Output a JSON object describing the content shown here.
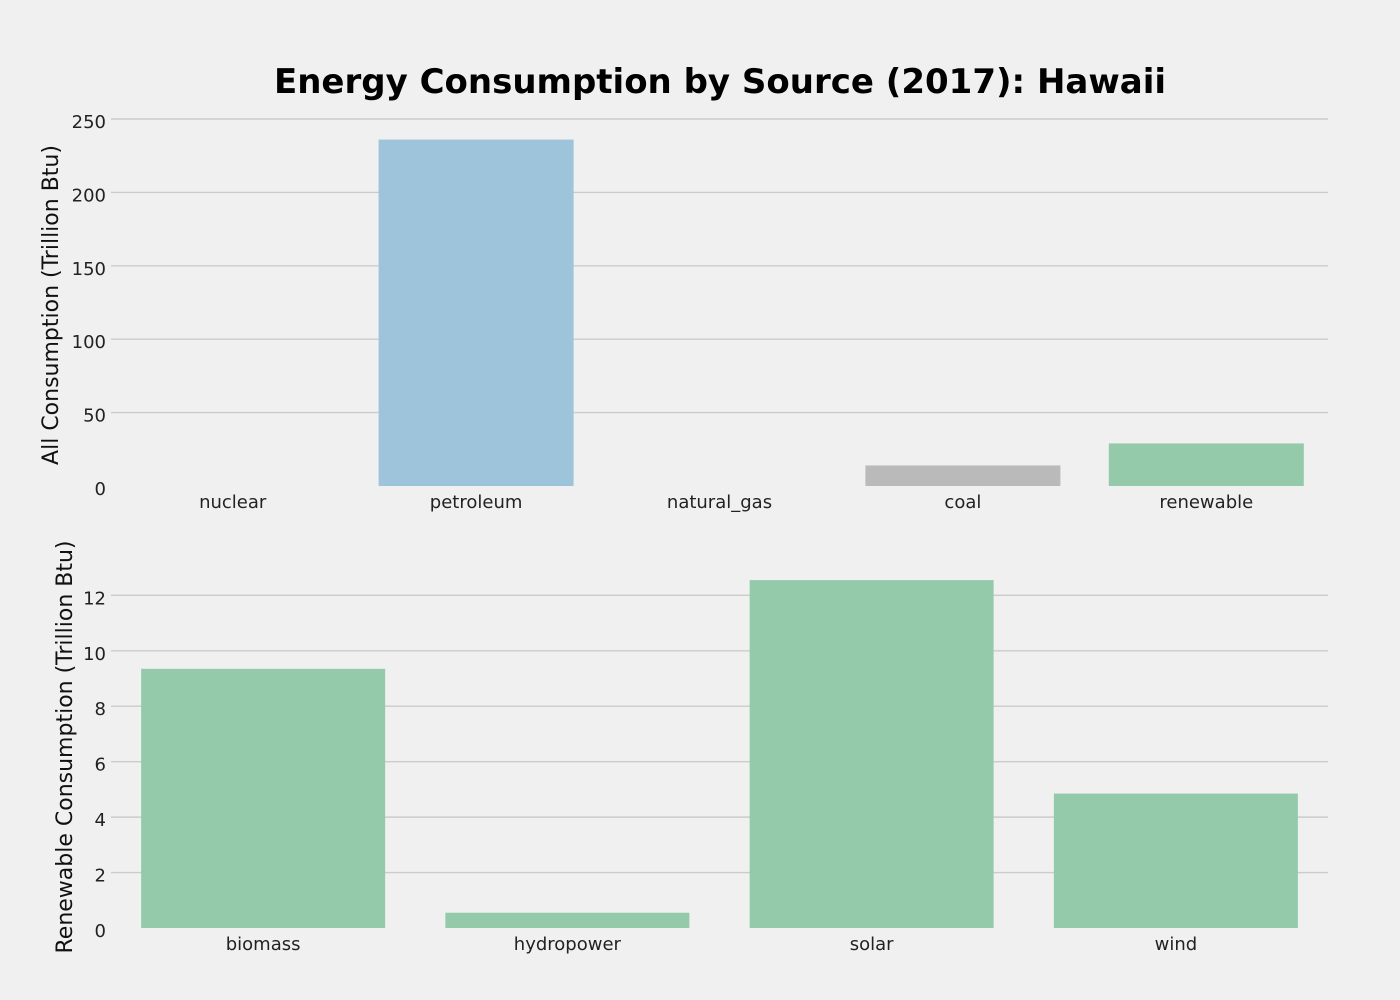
{
  "chart_data": {
    "title": "Energy Consumption by Source (2017): Hawaii",
    "charts": [
      {
        "type": "bar",
        "ylabel": "All Consumption (Trillion Btu)",
        "categories": [
          "nuclear",
          "petroleum",
          "natural_gas",
          "coal",
          "renewable"
        ],
        "values": [
          0,
          236,
          0,
          14,
          29
        ],
        "colors": [
          "#9ec4dc",
          "#9ec4dc",
          "#9ec4dc",
          "#bababa",
          "#94c9a9"
        ],
        "ylim": [
          0,
          250
        ],
        "yticks": [
          "0",
          "50",
          "100",
          "150",
          "200",
          "250"
        ],
        "yticks_values": [
          0,
          50,
          100,
          150,
          200,
          250
        ],
        "grid": true
      },
      {
        "type": "bar",
        "ylabel": "Renewable Consumption (Trillion Btu)",
        "categories": [
          "biomass",
          "hydropower",
          "solar",
          "wind"
        ],
        "values": [
          9.35,
          0.55,
          12.55,
          4.85
        ],
        "colors": [
          "#94c9a9",
          "#94c9a9",
          "#94c9a9",
          "#94c9a9"
        ],
        "ylim": [
          0,
          13.6
        ],
        "yticks": [
          "0",
          "2",
          "4",
          "6",
          "8",
          "10",
          "12"
        ],
        "yticks_values": [
          0,
          2,
          4,
          6,
          8,
          10,
          12
        ],
        "grid": true
      }
    ]
  }
}
